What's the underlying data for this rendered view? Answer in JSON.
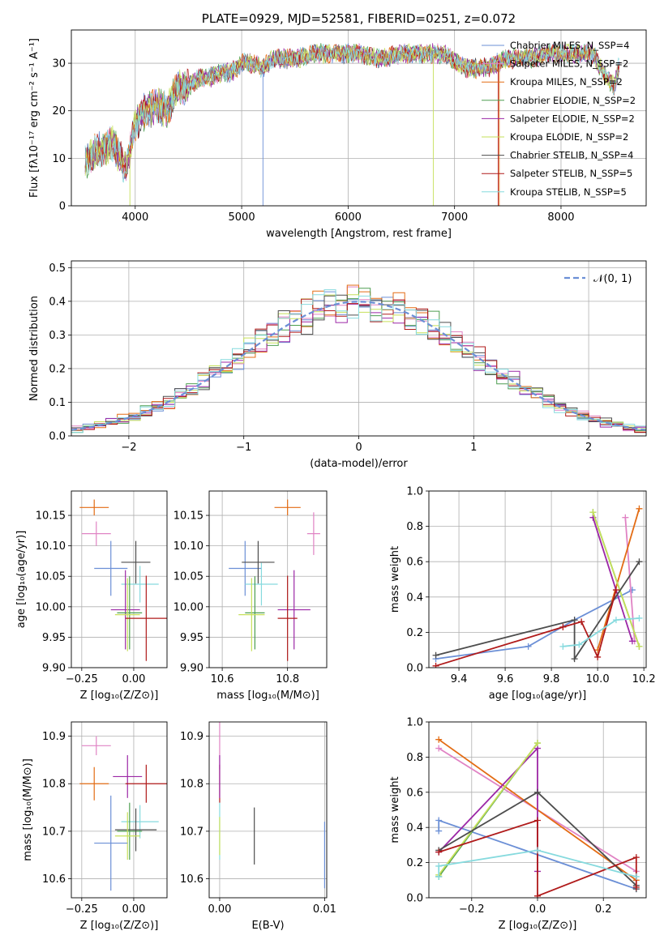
{
  "chart_data": [
    {
      "id": "spectrum",
      "type": "line",
      "title": "PLATE=0929, MJD=52581, FIBERID=0251, z=0.072",
      "xlabel": "wavelength [Angstrom, rest frame]",
      "ylabel": "Flux [fλ10⁻¹⁷ erg cm⁻² s⁻¹ A⁻¹]",
      "xlim": [
        3400,
        8800
      ],
      "ylim": [
        0,
        37
      ],
      "xticks": [
        "4000",
        "5000",
        "6000",
        "7000",
        "8000"
      ],
      "yticks": [
        "0",
        "10",
        "20",
        "30"
      ],
      "envelope": {
        "x": [
          3530,
          3600,
          3700,
          3800,
          3900,
          3950,
          4000,
          4050,
          4100,
          4200,
          4300,
          4400,
          4500,
          4600,
          4700,
          4800,
          4900,
          5000,
          5100,
          5200,
          5300,
          5500,
          5700,
          5900,
          6100,
          6300,
          6500,
          6700,
          6900,
          7100,
          7300,
          7500,
          7700,
          7900,
          8100,
          8300,
          8400,
          8500,
          8550
        ],
        "y": [
          9,
          11,
          12,
          13,
          8,
          11,
          17,
          19,
          20,
          21,
          20,
          25,
          25,
          27,
          27,
          28,
          28,
          30,
          30,
          29,
          31,
          31,
          32,
          32,
          32,
          31,
          32,
          32,
          32,
          29,
          29,
          31,
          31,
          32,
          32,
          32,
          28,
          25,
          30
        ]
      },
      "series": [
        {
          "name": "Chabrier MILES, N_SSP=4",
          "color": "#6b8fd6"
        },
        {
          "name": "Salpeter MILES, N_SSP=2",
          "color": "#e083c4"
        },
        {
          "name": "Kroupa MILES, N_SSP=2",
          "color": "#e36c14"
        },
        {
          "name": "Chabrier ELODIE, N_SSP=2",
          "color": "#4d9e50"
        },
        {
          "name": "Salpeter ELODIE, N_SSP=2",
          "color": "#9c27a6"
        },
        {
          "name": "Kroupa ELODIE, N_SSP=2",
          "color": "#c6e05a"
        },
        {
          "name": "Chabrier STELIB, N_SSP=4",
          "color": "#4d4d4d"
        },
        {
          "name": "Salpeter STELIB, N_SSP=5",
          "color": "#b01a1a"
        },
        {
          "name": "Kroupa STELIB, N_SSP=5",
          "color": "#86dade"
        }
      ],
      "legend_position": "right"
    },
    {
      "id": "residuals",
      "type": "line",
      "xlabel": "(data-model)/error",
      "ylabel": "Normed distribution",
      "xlim": [
        -2.5,
        2.5
      ],
      "ylim": [
        0,
        0.52
      ],
      "xticks": [
        "−2",
        "−1",
        "0",
        "1",
        "2"
      ],
      "yticks": [
        "0.0",
        "0.1",
        "0.2",
        "0.3",
        "0.4",
        "0.5"
      ],
      "bin_width": 0.1,
      "gaussian_label": "𝒩(0, 1)",
      "gaussian_color": "#6b8fd6",
      "series_colors": [
        "#6b8fd6",
        "#e083c4",
        "#e36c14",
        "#4d9e50",
        "#9c27a6",
        "#c6e05a",
        "#4d4d4d",
        "#b01a1a",
        "#86dade"
      ],
      "legend_position": "top-right"
    },
    {
      "id": "age-vs-Z",
      "type": "scatter",
      "xlabel": "Z [log₁₀(Z/Z⊙)]",
      "ylabel": "age  [log₁₀(age/yr)]",
      "xlim": [
        -0.3,
        0.16
      ],
      "ylim": [
        9.9,
        10.19
      ],
      "xticks": [
        "−0.25",
        "0.00"
      ],
      "xtick_values": [
        -0.25,
        0.0
      ],
      "yticks": [
        "9.90",
        "9.95",
        "10.00",
        "10.05",
        "10.10",
        "10.15"
      ],
      "ytick_values": [
        9.9,
        9.95,
        10.0,
        10.05,
        10.1,
        10.15
      ],
      "points": [
        {
          "x": -0.19,
          "y": 10.163,
          "xerr": 0.07,
          "yerr": 0.013,
          "color": "#e36c14"
        },
        {
          "x": -0.18,
          "y": 10.12,
          "xerr": 0.07,
          "yerr": 0.02,
          "color": "#e083c4"
        },
        {
          "x": -0.11,
          "y": 10.063,
          "xerr": 0.08,
          "yerr": 0.045,
          "color": "#6b8fd6"
        },
        {
          "x": 0.01,
          "y": 10.073,
          "xerr": 0.07,
          "yerr": 0.035,
          "color": "#4d4d4d"
        },
        {
          "x": 0.03,
          "y": 10.037,
          "xerr": 0.09,
          "yerr": 0.03,
          "color": "#86dade"
        },
        {
          "x": -0.04,
          "y": 9.995,
          "xerr": 0.07,
          "yerr": 0.065,
          "color": "#9c27a6"
        },
        {
          "x": -0.02,
          "y": 9.99,
          "xerr": 0.06,
          "yerr": 0.06,
          "color": "#4d9e50"
        },
        {
          "x": -0.03,
          "y": 9.987,
          "xerr": 0.06,
          "yerr": 0.06,
          "color": "#c6e05a"
        },
        {
          "x": 0.06,
          "y": 9.981,
          "xerr": 0.1,
          "yerr": 0.07,
          "color": "#b01a1a"
        }
      ]
    },
    {
      "id": "age-vs-mass",
      "type": "scatter",
      "xlabel": "mass [log₁₀(M/M⊙)]",
      "xlim": [
        10.56,
        10.92
      ],
      "ylim": [
        9.9,
        10.19
      ],
      "xticks": [
        "10.6",
        "10.8"
      ],
      "xtick_values": [
        10.6,
        10.8
      ],
      "yticks": [
        "9.90",
        "9.95",
        "10.00",
        "10.05",
        "10.10",
        "10.15"
      ],
      "ytick_values": [
        9.9,
        9.95,
        10.0,
        10.05,
        10.1,
        10.15
      ],
      "points": [
        {
          "x": 10.8,
          "y": 10.163,
          "xerr": 0.04,
          "yerr": 0.013,
          "color": "#e36c14"
        },
        {
          "x": 10.88,
          "y": 10.12,
          "xerr": 0.02,
          "yerr": 0.035,
          "color": "#e083c4"
        },
        {
          "x": 10.67,
          "y": 10.063,
          "xerr": 0.05,
          "yerr": 0.045,
          "color": "#6b8fd6"
        },
        {
          "x": 10.71,
          "y": 10.073,
          "xerr": 0.05,
          "yerr": 0.035,
          "color": "#4d4d4d"
        },
        {
          "x": 10.72,
          "y": 10.037,
          "xerr": 0.05,
          "yerr": 0.035,
          "color": "#86dade"
        },
        {
          "x": 10.82,
          "y": 9.995,
          "xerr": 0.05,
          "yerr": 0.065,
          "color": "#9c27a6"
        },
        {
          "x": 10.7,
          "y": 9.99,
          "xerr": 0.03,
          "yerr": 0.06,
          "color": "#4d9e50"
        },
        {
          "x": 10.69,
          "y": 9.987,
          "xerr": 0.04,
          "yerr": 0.06,
          "color": "#c6e05a"
        },
        {
          "x": 10.8,
          "y": 9.981,
          "xerr": 0.03,
          "yerr": 0.07,
          "color": "#b01a1a"
        }
      ]
    },
    {
      "id": "weight-vs-age",
      "type": "line",
      "xlabel": "age  [log₁₀(age/yr)]",
      "ylabel": "mass weight",
      "xlim": [
        9.27,
        10.21
      ],
      "ylim": [
        0,
        1
      ],
      "xticks": [
        "9.4",
        "9.6",
        "9.8",
        "10.0",
        "10.2"
      ],
      "xtick_values": [
        9.4,
        9.6,
        9.8,
        10.0,
        10.2
      ],
      "yticks": [
        "0.0",
        "0.2",
        "0.4",
        "0.6",
        "0.8",
        "1.0"
      ],
      "ytick_values": [
        0,
        0.2,
        0.4,
        0.6,
        0.8,
        1.0
      ],
      "series": [
        {
          "color": "#6b8fd6",
          "x": [
            9.3,
            9.7,
            9.9,
            10.15
          ],
          "y": [
            0.05,
            0.12,
            0.27,
            0.44
          ]
        },
        {
          "color": "#e083c4",
          "x": [
            10.12,
            10.16
          ],
          "y": [
            0.85,
            0.15
          ]
        },
        {
          "color": "#e36c14",
          "x": [
            10.0,
            10.18
          ],
          "y": [
            0.1,
            0.9
          ]
        },
        {
          "color": "#4d9e50",
          "x": [
            9.98,
            10.18
          ],
          "y": [
            0.88,
            0.12
          ]
        },
        {
          "color": "#9c27a6",
          "x": [
            9.98,
            10.15
          ],
          "y": [
            0.85,
            0.15
          ]
        },
        {
          "color": "#c6e05a",
          "x": [
            9.98,
            10.18
          ],
          "y": [
            0.88,
            0.12
          ]
        },
        {
          "color": "#4d4d4d",
          "x": [
            9.3,
            9.9,
            9.9,
            10.18
          ],
          "y": [
            0.07,
            0.27,
            0.05,
            0.6
          ]
        },
        {
          "color": "#b01a1a",
          "x": [
            9.3,
            9.85,
            9.93,
            10.0,
            10.08
          ],
          "y": [
            0.01,
            0.23,
            0.26,
            0.06,
            0.44
          ]
        },
        {
          "color": "#86dade",
          "x": [
            9.85,
            9.92,
            10.08,
            10.18
          ],
          "y": [
            0.12,
            0.13,
            0.27,
            0.28
          ]
        }
      ]
    },
    {
      "id": "mass-vs-Z",
      "type": "scatter",
      "xlabel": "Z [log₁₀(Z/Z⊙)]",
      "ylabel": "mass [log₁₀(M/M⊙)]",
      "xlim": [
        -0.3,
        0.16
      ],
      "ylim": [
        10.56,
        10.93
      ],
      "xticks": [
        "−0.25",
        "0.00"
      ],
      "xtick_values": [
        -0.25,
        0.0
      ],
      "yticks": [
        "10.6",
        "10.7",
        "10.8",
        "10.9"
      ],
      "ytick_values": [
        10.6,
        10.7,
        10.8,
        10.9
      ],
      "points": [
        {
          "x": -0.18,
          "y": 10.88,
          "xerr": 0.07,
          "yerr": 0.02,
          "color": "#e083c4"
        },
        {
          "x": -0.19,
          "y": 10.8,
          "xerr": 0.07,
          "yerr": 0.035,
          "color": "#e36c14"
        },
        {
          "x": -0.03,
          "y": 10.815,
          "xerr": 0.07,
          "yerr": 0.045,
          "color": "#9c27a6"
        },
        {
          "x": 0.06,
          "y": 10.8,
          "xerr": 0.1,
          "yerr": 0.04,
          "color": "#b01a1a"
        },
        {
          "x": 0.03,
          "y": 10.72,
          "xerr": 0.09,
          "yerr": 0.035,
          "color": "#86dade"
        },
        {
          "x": -0.02,
          "y": 10.7,
          "xerr": 0.06,
          "yerr": 0.06,
          "color": "#4d9e50"
        },
        {
          "x": 0.01,
          "y": 10.703,
          "xerr": 0.1,
          "yerr": 0.045,
          "color": "#4d4d4d"
        },
        {
          "x": -0.03,
          "y": 10.69,
          "xerr": 0.06,
          "yerr": 0.05,
          "color": "#c6e05a"
        },
        {
          "x": -0.11,
          "y": 10.675,
          "xerr": 0.08,
          "yerr": 0.1,
          "color": "#6b8fd6"
        }
      ]
    },
    {
      "id": "mass-vs-EBV",
      "type": "scatter",
      "xlabel": "E(B-V)",
      "xlim": [
        -0.001,
        0.0102
      ],
      "ylim": [
        10.56,
        10.93
      ],
      "xticks": [
        "0.00",
        "0.01"
      ],
      "xtick_values": [
        0.0,
        0.01
      ],
      "yticks": [
        "10.6",
        "10.7",
        "10.8",
        "10.9"
      ],
      "ytick_values": [
        10.6,
        10.7,
        10.8,
        10.9
      ],
      "points": [
        {
          "x": 0.0,
          "y": 10.88,
          "xerr": 0.0,
          "yerr": 0.05,
          "color": "#e083c4"
        },
        {
          "x": 0.0,
          "y": 10.8,
          "xerr": 0.0,
          "yerr": 0.04,
          "color": "#b01a1a"
        },
        {
          "x": 0.0,
          "y": 10.815,
          "xerr": 0.0,
          "yerr": 0.045,
          "color": "#9c27a6"
        },
        {
          "x": 0.0,
          "y": 10.7,
          "xerr": 0.0,
          "yerr": 0.06,
          "color": "#86dade"
        },
        {
          "x": 0.0,
          "y": 10.69,
          "xerr": 0.0,
          "yerr": 0.04,
          "color": "#c6e05a"
        },
        {
          "x": 0.0033,
          "y": 10.69,
          "xerr": 0.0,
          "yerr": 0.06,
          "color": "#4d4d4d"
        },
        {
          "x": 0.01,
          "y": 10.65,
          "xerr": 0.0,
          "yerr": 0.07,
          "color": "#6b8fd6"
        }
      ]
    },
    {
      "id": "weight-vs-Z",
      "type": "line",
      "xlabel": "Z [log₁₀(Z/Z⊙)]",
      "ylabel": "mass weight",
      "xlim": [
        -0.33,
        0.33
      ],
      "ylim": [
        0,
        1
      ],
      "xticks": [
        "−0.2",
        "0.0",
        "0.2"
      ],
      "xtick_values": [
        -0.2,
        0.0,
        0.2
      ],
      "yticks": [
        "0.0",
        "0.2",
        "0.4",
        "0.6",
        "0.8",
        "1.0"
      ],
      "ytick_values": [
        0,
        0.2,
        0.4,
        0.6,
        0.8,
        1.0
      ],
      "series": [
        {
          "color": "#6b8fd6",
          "x": [
            -0.3,
            -0.3,
            0.3
          ],
          "y": [
            0.38,
            0.44,
            0.05
          ]
        },
        {
          "color": "#e083c4",
          "x": [
            -0.3,
            0.3
          ],
          "y": [
            0.85,
            0.15
          ]
        },
        {
          "color": "#e36c14",
          "x": [
            -0.3,
            0.3
          ],
          "y": [
            0.9,
            0.1
          ]
        },
        {
          "color": "#4d9e50",
          "x": [
            -0.3,
            0.0
          ],
          "y": [
            0.12,
            0.88
          ]
        },
        {
          "color": "#9c27a6",
          "x": [
            -0.3,
            0.0,
            0.0
          ],
          "y": [
            0.26,
            0.85,
            0.15
          ]
        },
        {
          "color": "#c6e05a",
          "x": [
            -0.3,
            0.0
          ],
          "y": [
            0.13,
            0.88
          ]
        },
        {
          "color": "#4d4d4d",
          "x": [
            -0.3,
            0.0,
            0.3,
            0.3
          ],
          "y": [
            0.27,
            0.6,
            0.07,
            0.05
          ]
        },
        {
          "color": "#b01a1a",
          "x": [
            -0.3,
            0.0,
            0.0,
            0.3,
            0.3
          ],
          "y": [
            0.26,
            0.44,
            0.01,
            0.23,
            0.06
          ]
        },
        {
          "color": "#86dade",
          "x": [
            -0.3,
            -0.3,
            0.0,
            0.3
          ],
          "y": [
            0.12,
            0.18,
            0.27,
            0.12
          ]
        }
      ]
    }
  ]
}
